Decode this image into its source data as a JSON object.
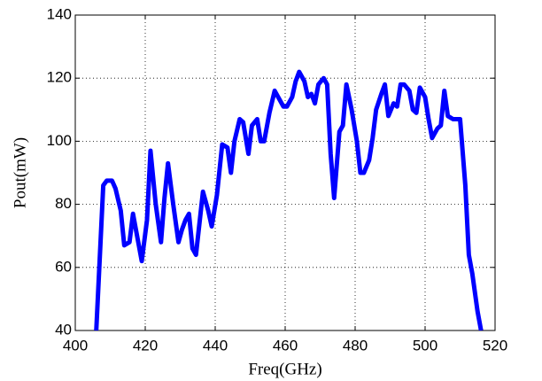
{
  "chart_data": {
    "type": "line",
    "xlabel": "Freq(GHz)",
    "ylabel": "Pout(mW)",
    "x": [
      406,
      408,
      409,
      410.5,
      411.5,
      413,
      414,
      415.5,
      416.5,
      418,
      419,
      420.5,
      421.5,
      423,
      424.5,
      425.5,
      426.5,
      428,
      429.5,
      430.5,
      431.5,
      432.5,
      433.5,
      434.5,
      436.5,
      438,
      439,
      440.5,
      442,
      443.5,
      444.5,
      445.5,
      447,
      448,
      449.5,
      450.5,
      452,
      453,
      454,
      455.5,
      457,
      458,
      459.5,
      460.5,
      462,
      463,
      464,
      465.5,
      466.5,
      467.5,
      468.5,
      469.5,
      471,
      472,
      473,
      474,
      475.5,
      476.5,
      477.5,
      479,
      480.5,
      481.5,
      482.5,
      484,
      485,
      486,
      487.5,
      488.5,
      489.5,
      491,
      492,
      493,
      494,
      495.5,
      496.5,
      497.5,
      498.5,
      500,
      501,
      502,
      503.5,
      504.5,
      505.5,
      506.5,
      508,
      509,
      510,
      511.5,
      512.5,
      513.5,
      515,
      516
    ],
    "series": [
      {
        "name": "Pout",
        "color": "#0000ff",
        "values": [
          40,
          86,
          87.5,
          87.5,
          85,
          78,
          67,
          68,
          77,
          68,
          62,
          75,
          97,
          80,
          68,
          82,
          93,
          80,
          68,
          72,
          75,
          77,
          66,
          64,
          84,
          78,
          73,
          83,
          99,
          98,
          90,
          100,
          107,
          106,
          96,
          105,
          107,
          100,
          100,
          109,
          116,
          114,
          111,
          111,
          114,
          119,
          122,
          119,
          114,
          115,
          112,
          118,
          120,
          118,
          96,
          82,
          103,
          105,
          118,
          110,
          100,
          90,
          90,
          94,
          101,
          110,
          115,
          118,
          108,
          112,
          111,
          118,
          118,
          116,
          110,
          109,
          117,
          114,
          107,
          101,
          104,
          105,
          116,
          108,
          107,
          107,
          107,
          86,
          64,
          58,
          46,
          40
        ]
      }
    ],
    "xlim": [
      400,
      520
    ],
    "xticks": [
      400,
      420,
      440,
      460,
      480,
      500,
      520
    ],
    "ylim": [
      40,
      140
    ],
    "yticks": [
      40,
      60,
      80,
      100,
      120,
      140
    ],
    "grid": true
  }
}
